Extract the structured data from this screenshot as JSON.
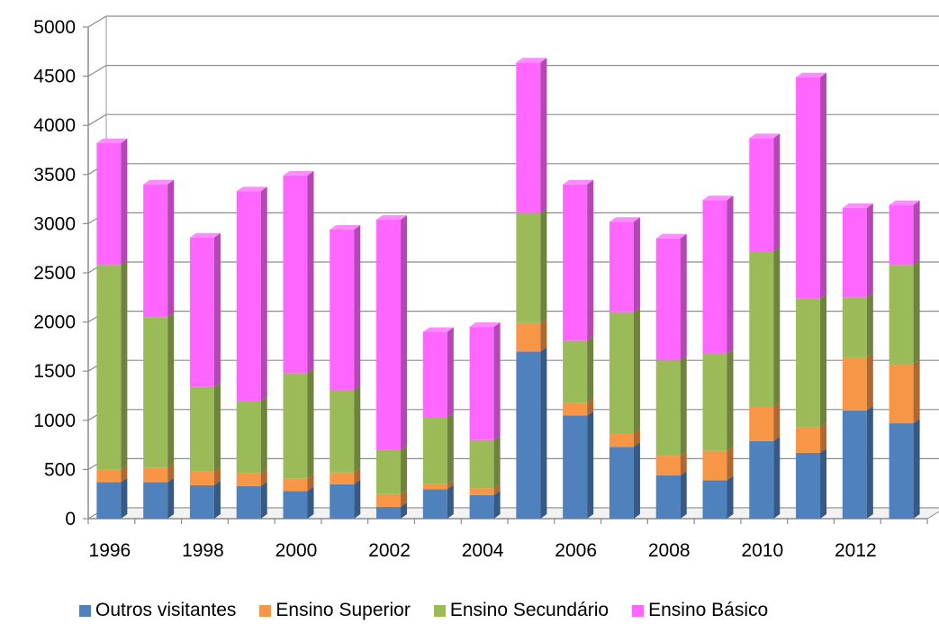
{
  "chart_data": {
    "type": "bar",
    "stacked": true,
    "three_d": true,
    "title": "",
    "xlabel": "",
    "ylabel": "",
    "ylim": [
      0,
      5000
    ],
    "yticks": [
      0,
      500,
      1000,
      1500,
      2000,
      2500,
      3000,
      3500,
      4000,
      4500,
      5000
    ],
    "grid": true,
    "legend_position": "bottom",
    "categories": [
      "1996",
      "1997",
      "1998",
      "1999",
      "2000",
      "2001",
      "2002",
      "2003",
      "2004",
      "2005",
      "2006",
      "2007",
      "2008",
      "2009",
      "2010",
      "2011",
      "2012",
      "2013"
    ],
    "xtick_labels": [
      "1996",
      "",
      "1998",
      "",
      "2000",
      "",
      "2002",
      "",
      "2004",
      "",
      "2006",
      "",
      "2008",
      "",
      "2010",
      "",
      "2012",
      ""
    ],
    "series": [
      {
        "name": "Outros visitantes",
        "color": "#4F81BD",
        "values": [
          370,
          370,
          340,
          330,
          280,
          350,
          120,
          300,
          240,
          1700,
          1050,
          730,
          440,
          390,
          790,
          670,
          1100,
          970
        ]
      },
      {
        "name": "Ensino Superior",
        "color": "#F79646",
        "values": [
          130,
          150,
          140,
          130,
          130,
          120,
          130,
          50,
          70,
          290,
          130,
          140,
          200,
          300,
          350,
          260,
          540,
          600
        ]
      },
      {
        "name": "Ensino Secundário",
        "color": "#9BBB59",
        "values": [
          2080,
          1530,
          860,
          740,
          1070,
          840,
          450,
          680,
          490,
          1120,
          630,
          1230,
          970,
          990,
          1580,
          1310,
          610,
          1010
        ]
      },
      {
        "name": "Ensino Básico",
        "color": "#FF66FF",
        "values": [
          1240,
          1350,
          1520,
          2130,
          2010,
          1630,
          2340,
          870,
          1150,
          1530,
          1590,
          920,
          1240,
          1560,
          1150,
          2250,
          910,
          610
        ]
      }
    ]
  }
}
